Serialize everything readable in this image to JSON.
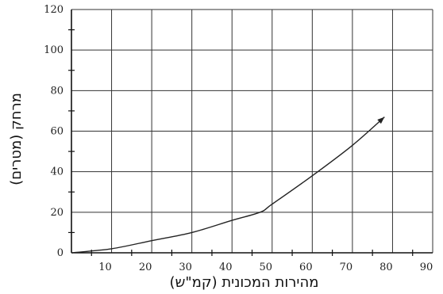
{
  "chart_data": {
    "type": "line",
    "title": "",
    "xlabel": "מהירות המכונית (קמ\"ש)",
    "ylabel": "מרחק (מטרים)",
    "xlim": [
      0,
      90
    ],
    "ylim": [
      0,
      120
    ],
    "x_ticks": [
      "10",
      "20",
      "30",
      "40",
      "50",
      "60",
      "70",
      "80",
      "90"
    ],
    "y_ticks": [
      "0",
      "20",
      "40",
      "60",
      "80",
      "100",
      "120"
    ],
    "grid": true,
    "series": [
      {
        "x": [
          0,
          10,
          20,
          30,
          40,
          47,
          50,
          60,
          70,
          78
        ],
        "y": [
          0,
          2,
          6,
          10,
          16,
          20,
          24,
          38,
          53,
          67
        ]
      }
    ],
    "colors": {
      "line": "#222222",
      "grid": "#333333",
      "axis": "#111111"
    }
  }
}
